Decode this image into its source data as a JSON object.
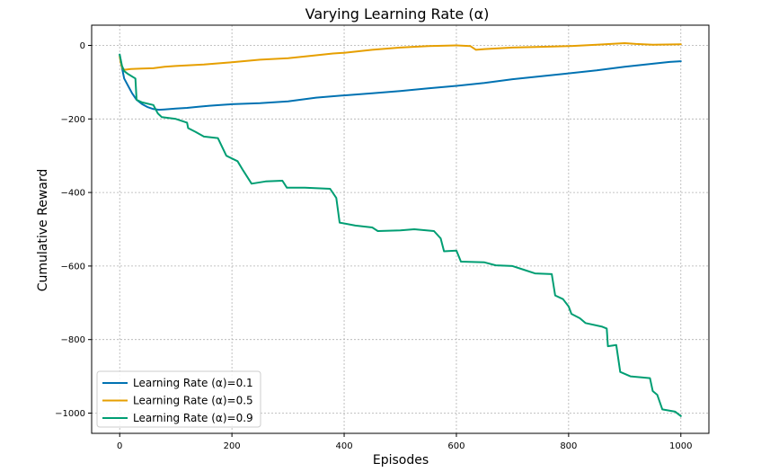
{
  "chart_data": {
    "type": "line",
    "title": "Varying Learning Rate (α)",
    "xlabel": "Episodes",
    "ylabel": "Cumulative Reward",
    "xlim": [
      -50,
      1050
    ],
    "ylim": [
      -1055,
      55
    ],
    "xticks": [
      0,
      200,
      400,
      600,
      800,
      1000
    ],
    "xtick_labels": [
      "0",
      "200",
      "400",
      "600",
      "800",
      "1000"
    ],
    "yticks": [
      0,
      -200,
      -400,
      -600,
      -800,
      -1000
    ],
    "ytick_labels": [
      "0",
      "−200",
      "−400",
      "−600",
      "−800",
      "−1000"
    ],
    "grid": true,
    "legend_position": "lower-left",
    "series": [
      {
        "name": "Learning Rate (α)=0.1",
        "color": "#0072B2",
        "points": [
          [
            0,
            -25
          ],
          [
            4,
            -60
          ],
          [
            8,
            -90
          ],
          [
            15,
            -110
          ],
          [
            22,
            -130
          ],
          [
            30,
            -148
          ],
          [
            40,
            -160
          ],
          [
            50,
            -168
          ],
          [
            60,
            -173
          ],
          [
            70,
            -175
          ],
          [
            80,
            -174
          ],
          [
            100,
            -172
          ],
          [
            120,
            -170
          ],
          [
            140,
            -167
          ],
          [
            160,
            -164
          ],
          [
            180,
            -162
          ],
          [
            200,
            -160
          ],
          [
            250,
            -157
          ],
          [
            300,
            -152
          ],
          [
            350,
            -142
          ],
          [
            400,
            -136
          ],
          [
            450,
            -130
          ],
          [
            500,
            -124
          ],
          [
            550,
            -117
          ],
          [
            600,
            -110
          ],
          [
            650,
            -102
          ],
          [
            700,
            -92
          ],
          [
            750,
            -84
          ],
          [
            800,
            -76
          ],
          [
            850,
            -68
          ],
          [
            900,
            -58
          ],
          [
            950,
            -50
          ],
          [
            980,
            -45
          ],
          [
            1000,
            -43
          ]
        ]
      },
      {
        "name": "Learning Rate (α)=0.5",
        "color": "#E69F00",
        "points": [
          [
            0,
            -30
          ],
          [
            3,
            -55
          ],
          [
            6,
            -65
          ],
          [
            10,
            -66
          ],
          [
            20,
            -64
          ],
          [
            40,
            -63
          ],
          [
            60,
            -62
          ],
          [
            80,
            -58
          ],
          [
            100,
            -56
          ],
          [
            150,
            -52
          ],
          [
            200,
            -46
          ],
          [
            250,
            -39
          ],
          [
            300,
            -35
          ],
          [
            350,
            -27
          ],
          [
            380,
            -22
          ],
          [
            400,
            -20
          ],
          [
            450,
            -12
          ],
          [
            500,
            -6
          ],
          [
            550,
            -2
          ],
          [
            600,
            0
          ],
          [
            625,
            -2
          ],
          [
            635,
            -12
          ],
          [
            650,
            -10
          ],
          [
            700,
            -6
          ],
          [
            750,
            -4
          ],
          [
            800,
            -2
          ],
          [
            850,
            2
          ],
          [
            900,
            6
          ],
          [
            920,
            4
          ],
          [
            950,
            2
          ],
          [
            1000,
            3
          ]
        ]
      },
      {
        "name": "Learning Rate (α)=0.9",
        "color": "#009E73",
        "points": [
          [
            0,
            -25
          ],
          [
            4,
            -55
          ],
          [
            8,
            -70
          ],
          [
            15,
            -78
          ],
          [
            28,
            -90
          ],
          [
            30,
            -148
          ],
          [
            40,
            -155
          ],
          [
            60,
            -162
          ],
          [
            68,
            -185
          ],
          [
            75,
            -195
          ],
          [
            100,
            -200
          ],
          [
            120,
            -210
          ],
          [
            122,
            -225
          ],
          [
            135,
            -235
          ],
          [
            150,
            -248
          ],
          [
            175,
            -252
          ],
          [
            190,
            -300
          ],
          [
            210,
            -315
          ],
          [
            220,
            -340
          ],
          [
            235,
            -376
          ],
          [
            260,
            -370
          ],
          [
            290,
            -368
          ],
          [
            298,
            -387
          ],
          [
            330,
            -387
          ],
          [
            375,
            -390
          ],
          [
            386,
            -415
          ],
          [
            392,
            -482
          ],
          [
            420,
            -490
          ],
          [
            450,
            -495
          ],
          [
            460,
            -505
          ],
          [
            500,
            -503
          ],
          [
            525,
            -500
          ],
          [
            560,
            -505
          ],
          [
            572,
            -525
          ],
          [
            578,
            -560
          ],
          [
            600,
            -558
          ],
          [
            608,
            -588
          ],
          [
            650,
            -590
          ],
          [
            670,
            -598
          ],
          [
            700,
            -600
          ],
          [
            720,
            -610
          ],
          [
            740,
            -620
          ],
          [
            770,
            -622
          ],
          [
            776,
            -680
          ],
          [
            790,
            -690
          ],
          [
            800,
            -710
          ],
          [
            805,
            -730
          ],
          [
            820,
            -742
          ],
          [
            830,
            -755
          ],
          [
            860,
            -765
          ],
          [
            868,
            -770
          ],
          [
            870,
            -818
          ],
          [
            885,
            -815
          ],
          [
            892,
            -888
          ],
          [
            910,
            -900
          ],
          [
            930,
            -903
          ],
          [
            945,
            -905
          ],
          [
            950,
            -940
          ],
          [
            958,
            -950
          ],
          [
            967,
            -990
          ],
          [
            990,
            -996
          ],
          [
            1000,
            -1008
          ]
        ]
      }
    ]
  }
}
